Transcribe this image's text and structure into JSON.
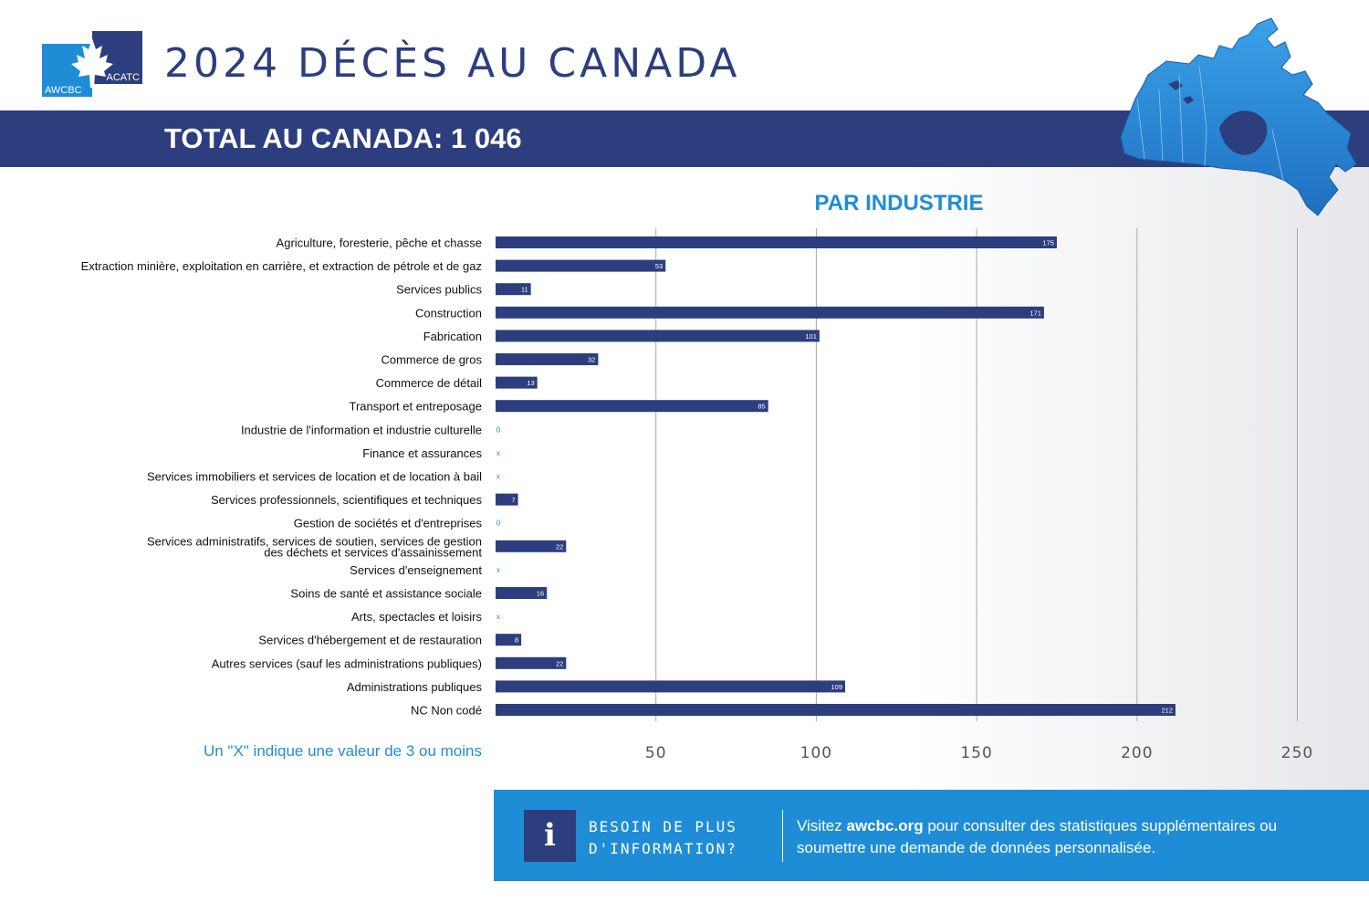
{
  "header": {
    "logo_left": "AWCBC",
    "logo_right": "ACATC",
    "title": "2024 DÉCÈS AU CANADA",
    "total_banner": "TOTAL AU CANADA: 1 046"
  },
  "colors": {
    "navy": "#2c3e7e",
    "accent_blue": "#1f8dd6",
    "bar": "#2c3e7e",
    "grid": "#a8a8a8"
  },
  "icons": {
    "map": "canada-map-icon",
    "info": "info-icon",
    "maple": "maple-leaf-icon"
  },
  "chart_data": {
    "type": "bar",
    "orientation": "horizontal",
    "title": "PAR INDUSTRIE",
    "categories": [
      "Agriculture, foresterie, pêche et chasse",
      "Extraction minière, exploitation en carrière, et extraction de pétrole et de gaz",
      "Services publics",
      "Construction",
      "Fabrication",
      "Commerce de gros",
      "Commerce de détail",
      "Transport et entreposage",
      "Industrie de l'information et industrie culturelle",
      "Finance et assurances",
      "Services immobiliers et services de location et de location à bail",
      "Services professionnels, scientifiques et techniques",
      "Gestion de sociétés et d'entreprises",
      "Services administratifs, services de soutien, services de gestion des déchets et services d'assainissement",
      "Services d'enseignement",
      "Soins de santé et assistance sociale",
      "Arts, spectacles et loisirs",
      "Services d'hébergement et de restauration",
      "Autres services (sauf les administrations publiques)",
      "Administrations publiques",
      "NC Non codé"
    ],
    "category_lines": [
      [
        "Agriculture, foresterie, pêche et chasse"
      ],
      [
        "Extraction minière, exploitation en carrière, et extraction de pétrole et de gaz"
      ],
      [
        "Services publics"
      ],
      [
        "Construction"
      ],
      [
        "Fabrication"
      ],
      [
        "Commerce de gros"
      ],
      [
        "Commerce de détail"
      ],
      [
        "Transport et entreposage"
      ],
      [
        "Industrie de l'information et industrie culturelle"
      ],
      [
        "Finance et assurances"
      ],
      [
        "Services immobiliers et services de location et de location à bail"
      ],
      [
        "Services professionnels, scientifiques et techniques"
      ],
      [
        "Gestion de sociétés et d'entreprises"
      ],
      [
        "Services administratifs, services de soutien, services de gestion",
        "des déchets et services d'assainissement"
      ],
      [
        "Services d'enseignement"
      ],
      [
        "Soins de santé et assistance sociale"
      ],
      [
        "Arts, spectacles et loisirs"
      ],
      [
        "Services d'hébergement et de restauration"
      ],
      [
        "Autres services (sauf les administrations publiques)"
      ],
      [
        "Administrations publiques"
      ],
      [
        "NC Non codé"
      ]
    ],
    "values": [
      175,
      53,
      11,
      171,
      101,
      32,
      13,
      85,
      0,
      null,
      null,
      7,
      0,
      22,
      null,
      16,
      null,
      8,
      22,
      109,
      212
    ],
    "data_labels": [
      "175",
      "53",
      "11",
      "171",
      "101",
      "32",
      "13",
      "85",
      "0",
      "X",
      "X",
      "7",
      "0",
      "22",
      "X",
      "16",
      "X",
      "8",
      "22",
      "109",
      "212"
    ],
    "xlim": [
      0,
      250
    ],
    "xticks": [
      50,
      100,
      150,
      200,
      250
    ],
    "grid": true,
    "legend": "none",
    "footnote": "Un \"X\" indique une valeur de 3 ou moins"
  },
  "info_box": {
    "heading": "BESOIN DE PLUS D'INFORMATION?",
    "text_before": "Visitez ",
    "link": "awcbc.org",
    "text_after": " pour consulter des statistiques supplémentaires ou soumettre une demande de données personnalisée."
  }
}
